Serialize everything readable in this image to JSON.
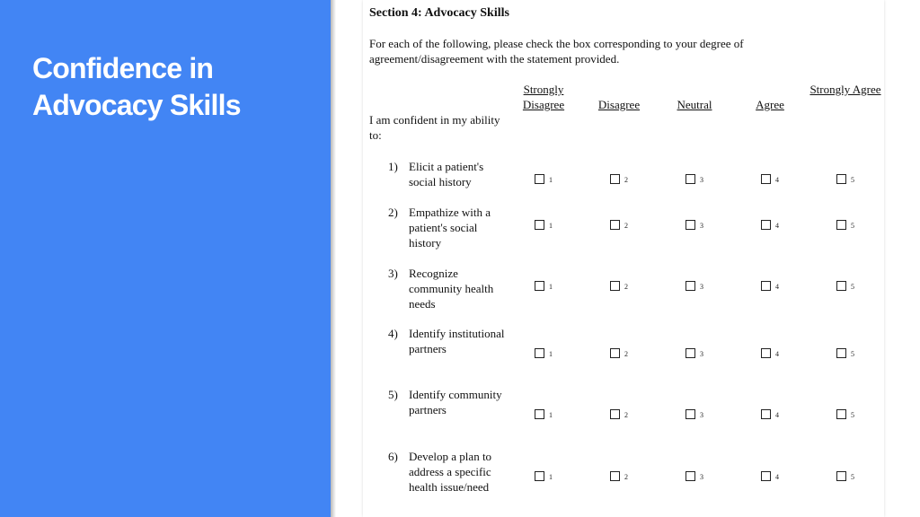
{
  "slide": {
    "title": "Confidence in Advocacy Skills"
  },
  "document": {
    "section_title": "Section 4: Advocacy Skills",
    "instructions": "For each of the following, please check the box corresponding to your degree of agreement/disagreement with the statement provided.",
    "scale": [
      {
        "label": "Strongly Disagree",
        "value": "1"
      },
      {
        "label": "Disagree",
        "value": "2"
      },
      {
        "label": "Neutral",
        "value": "3"
      },
      {
        "label": "Agree",
        "value": "4"
      },
      {
        "label": "Strongly Agree",
        "value": "5"
      }
    ],
    "stem": "I am confident in my ability to:",
    "items": [
      {
        "number": "1)",
        "text": "Elicit a patient's social history"
      },
      {
        "number": "2)",
        "text": "Empathize with a patient's social history"
      },
      {
        "number": "3)",
        "text": "Recognize community health needs"
      },
      {
        "number": "4)",
        "text": "Identify institutional partners"
      },
      {
        "number": "5)",
        "text": "Identify community partners"
      },
      {
        "number": "6)",
        "text": "Develop a plan to address a specific health issue/need"
      }
    ]
  }
}
